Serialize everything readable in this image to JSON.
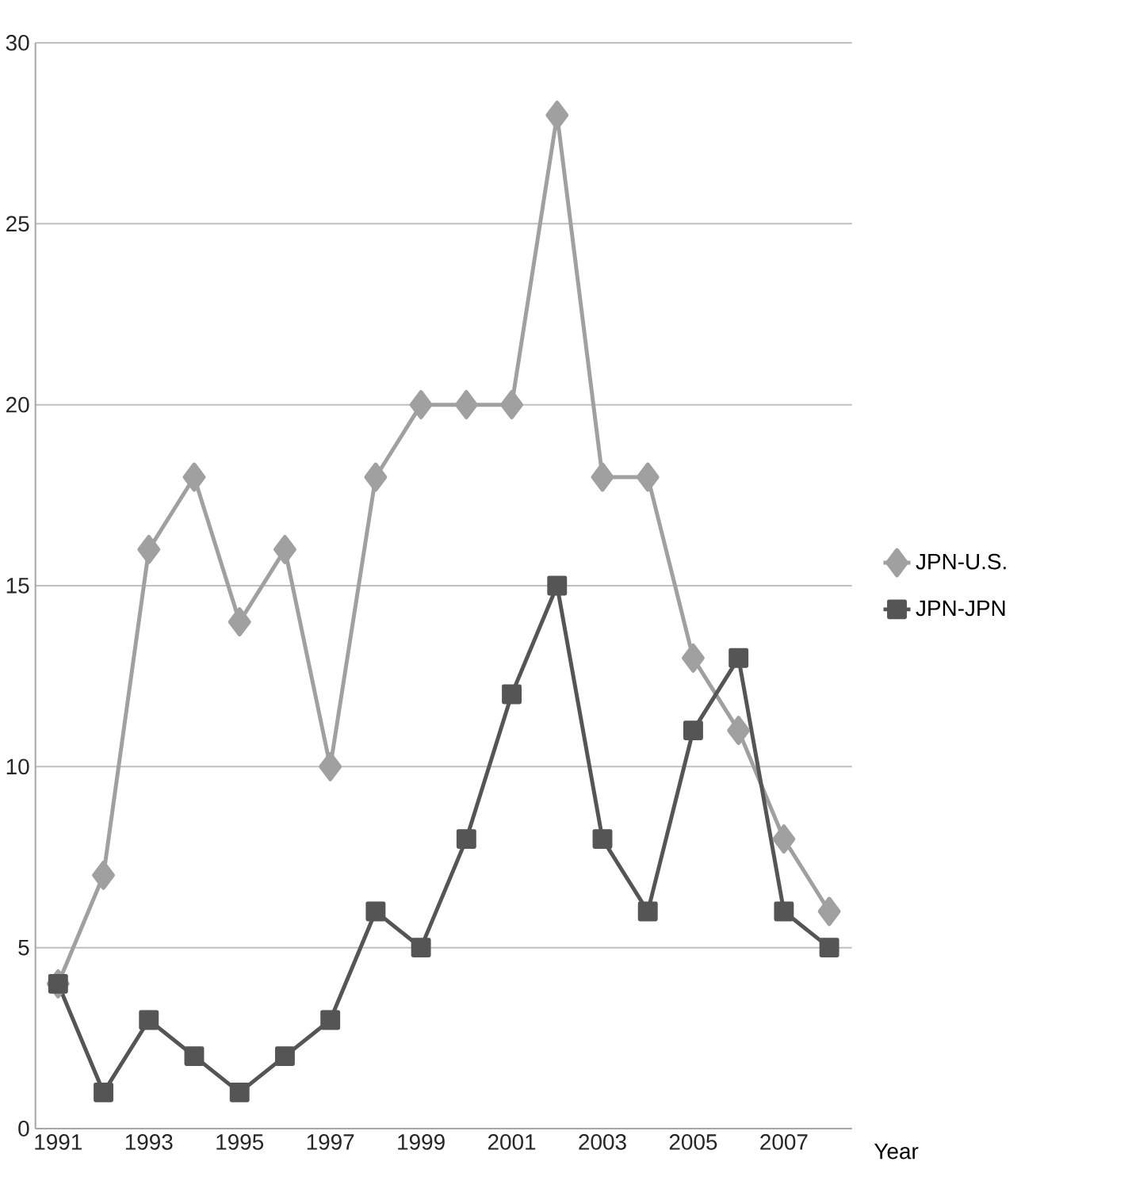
{
  "chart_data": {
    "type": "line",
    "xlabel": "Year",
    "categories": [
      "1991",
      null,
      "1993",
      null,
      "1995",
      null,
      "1997",
      null,
      "1999",
      null,
      "2001",
      null,
      "2003",
      null,
      "2005",
      null,
      "2007",
      null
    ],
    "series": [
      {
        "name": "JPN-U.S.",
        "color": "#a0a0a0",
        "marker": "diamond",
        "values": [
          4,
          7,
          16,
          18,
          14,
          16,
          10,
          18,
          20,
          20,
          20,
          28,
          18,
          18,
          13,
          11,
          8,
          6
        ]
      },
      {
        "name": "JPN-JPN",
        "color": "#555555",
        "marker": "square",
        "values": [
          4,
          1,
          3,
          2,
          1,
          2,
          3,
          6,
          5,
          8,
          12,
          15,
          8,
          6,
          11,
          13,
          6,
          5
        ]
      }
    ],
    "ylim": [
      0,
      30
    ],
    "yticks": [
      0,
      5,
      10,
      15,
      20,
      25,
      30
    ],
    "grid": "y",
    "legend": "right",
    "line_style": "solid"
  }
}
